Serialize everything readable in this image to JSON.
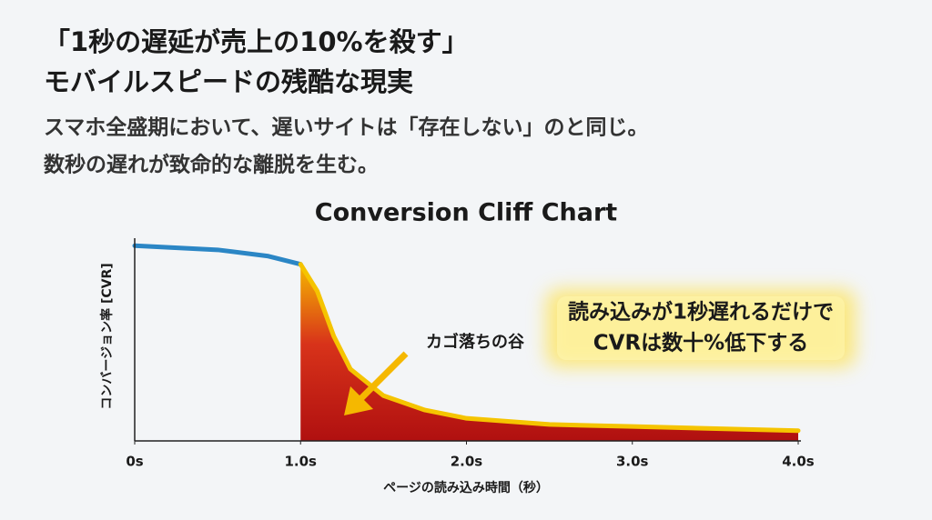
{
  "header": {
    "title": [
      "「1秒の遅延が売上の10%を殺す」",
      "モバイルスピードの残酷な現実"
    ],
    "subtitle": [
      "スマホ全盛期において、遅いサイトは「存在しない」のと同じ。",
      "数秒の遅れが致命的な離脱を生む。"
    ]
  },
  "chart_data": {
    "type": "line",
    "title": "Conversion Cliff Chart",
    "x_label": "ページの読み込み時間（秒）",
    "y_label": "コンバージョン率 [CVR]",
    "x": [
      0,
      0.5,
      0.8,
      1.0,
      1.1,
      1.2,
      1.3,
      1.5,
      1.75,
      2.0,
      2.5,
      3.0,
      4.0
    ],
    "series": [
      {
        "color": "#2b86c5",
        "area": false,
        "values": [
          95,
          93,
          90,
          86,
          null,
          null,
          null,
          null,
          null,
          null,
          null,
          null,
          null
        ]
      },
      {
        "color": "#f5c400",
        "area": true,
        "values": [
          null,
          null,
          null,
          86,
          73,
          51,
          35,
          22,
          15,
          11,
          8,
          7,
          5
        ]
      }
    ],
    "xlim": [
      0,
      4.0
    ],
    "ylim": [
      0,
      100
    ],
    "xticks": [
      {
        "value": 0,
        "label": "0s"
      },
      {
        "value": 1.0,
        "label": "1.0s"
      },
      {
        "value": 2.0,
        "label": "2.0s"
      },
      {
        "value": 3.0,
        "label": "3.0s"
      },
      {
        "value": 4.0,
        "label": "4.0s"
      }
    ],
    "annotations": [
      {
        "text": "カゴ落ちの谷"
      },
      {
        "text": [
          "読み込みが1秒遅れるだけで",
          "CVRは数十%低下する"
        ]
      }
    ]
  }
}
